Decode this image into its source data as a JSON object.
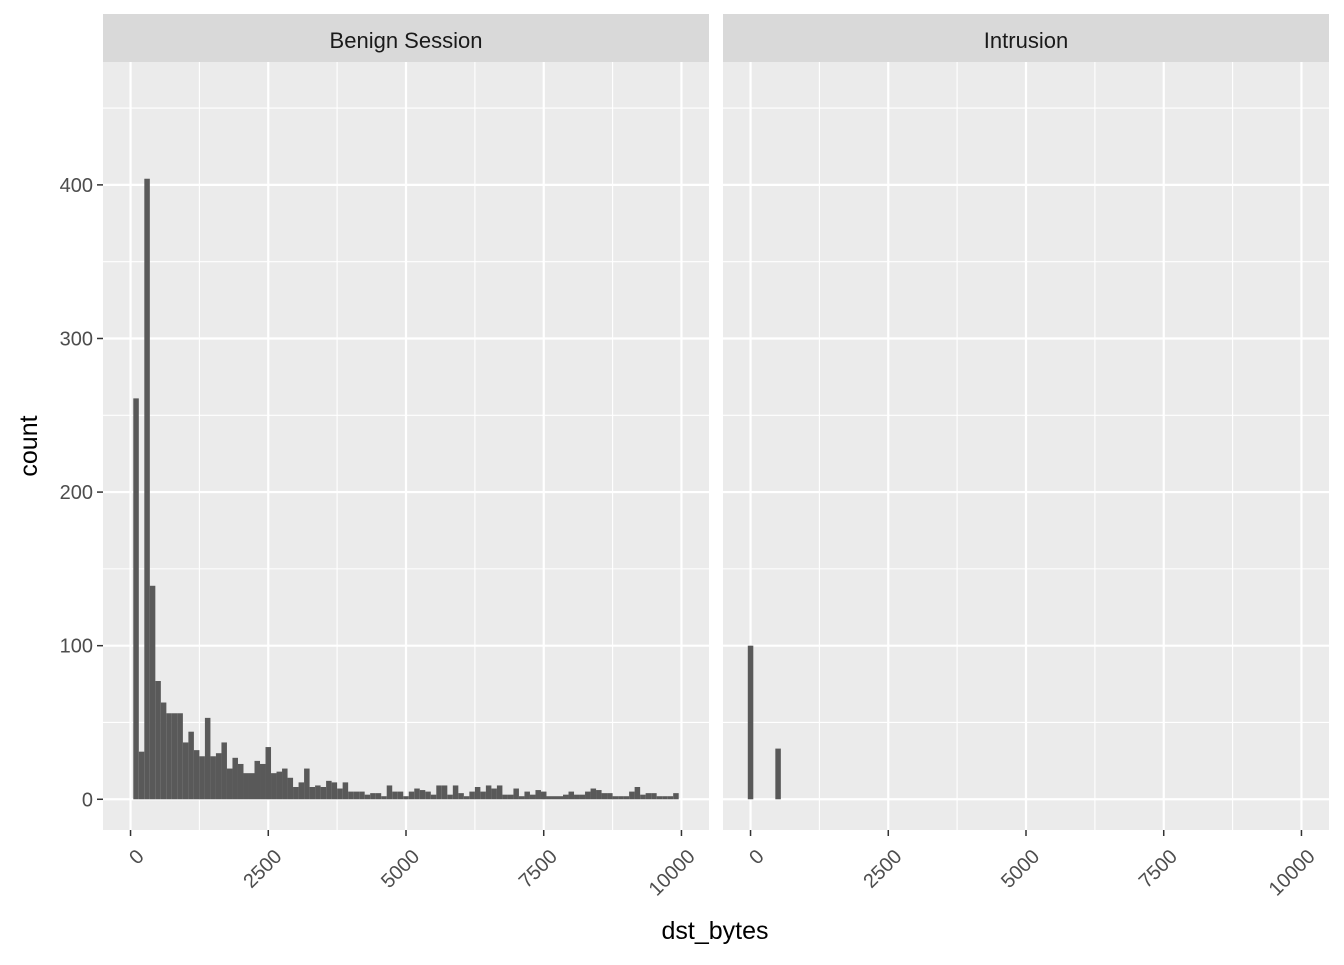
{
  "chart_data": {
    "type": "bar",
    "facet_style": "ggplot2 facet_wrap, grey panel background, white grid lines",
    "xlabel": "dst_bytes",
    "ylabel": "count",
    "xlim": [
      -500,
      10500
    ],
    "ylim": [
      -20,
      480
    ],
    "x_ticks": [
      0,
      2500,
      5000,
      7500,
      10000
    ],
    "x_tick_labels": [
      "0",
      "2500",
      "5000",
      "7500",
      "10000"
    ],
    "y_ticks": [
      0,
      100,
      200,
      300,
      400
    ],
    "y_tick_labels": [
      "0",
      "100",
      "200",
      "300",
      "400"
    ],
    "bin_width": 100,
    "bar_color": "#595959",
    "panel_background": "#ebebeb",
    "strip_background": "#d9d9d9",
    "grid": true,
    "panels": [
      {
        "strip_label": "Benign Session",
        "bins": [
          [
            100,
            261
          ],
          [
            200,
            31
          ],
          [
            300,
            404
          ],
          [
            400,
            139
          ],
          [
            500,
            77
          ],
          [
            600,
            63
          ],
          [
            700,
            56
          ],
          [
            800,
            56
          ],
          [
            900,
            56
          ],
          [
            1000,
            37
          ],
          [
            1100,
            44
          ],
          [
            1200,
            32
          ],
          [
            1300,
            28
          ],
          [
            1400,
            53
          ],
          [
            1500,
            28
          ],
          [
            1600,
            30
          ],
          [
            1700,
            37
          ],
          [
            1800,
            20
          ],
          [
            1900,
            27
          ],
          [
            2000,
            23
          ],
          [
            2100,
            17
          ],
          [
            2200,
            17
          ],
          [
            2300,
            25
          ],
          [
            2400,
            23
          ],
          [
            2500,
            34
          ],
          [
            2600,
            17
          ],
          [
            2700,
            18
          ],
          [
            2800,
            20
          ],
          [
            2900,
            14
          ],
          [
            3000,
            8
          ],
          [
            3100,
            11
          ],
          [
            3200,
            20
          ],
          [
            3300,
            8
          ],
          [
            3400,
            9
          ],
          [
            3500,
            8
          ],
          [
            3600,
            12
          ],
          [
            3700,
            11
          ],
          [
            3800,
            7
          ],
          [
            3900,
            11
          ],
          [
            4000,
            5
          ],
          [
            4100,
            5
          ],
          [
            4200,
            5
          ],
          [
            4300,
            3
          ],
          [
            4400,
            4
          ],
          [
            4500,
            4
          ],
          [
            4600,
            2
          ],
          [
            4700,
            9
          ],
          [
            4800,
            5
          ],
          [
            4900,
            5
          ],
          [
            5000,
            2
          ],
          [
            5100,
            5
          ],
          [
            5200,
            7
          ],
          [
            5300,
            6
          ],
          [
            5400,
            5
          ],
          [
            5500,
            3
          ],
          [
            5600,
            9
          ],
          [
            5700,
            9
          ],
          [
            5800,
            3
          ],
          [
            5900,
            9
          ],
          [
            6000,
            4
          ],
          [
            6100,
            2
          ],
          [
            6200,
            5
          ],
          [
            6300,
            8
          ],
          [
            6400,
            5
          ],
          [
            6500,
            9
          ],
          [
            6600,
            7
          ],
          [
            6700,
            9
          ],
          [
            6800,
            3
          ],
          [
            6900,
            3
          ],
          [
            7000,
            7
          ],
          [
            7100,
            2
          ],
          [
            7200,
            5
          ],
          [
            7300,
            3
          ],
          [
            7400,
            6
          ],
          [
            7500,
            5
          ],
          [
            7600,
            2
          ],
          [
            7700,
            2
          ],
          [
            7800,
            2
          ],
          [
            7900,
            3
          ],
          [
            8000,
            5
          ],
          [
            8100,
            3
          ],
          [
            8200,
            3
          ],
          [
            8300,
            5
          ],
          [
            8400,
            7
          ],
          [
            8500,
            6
          ],
          [
            8600,
            4
          ],
          [
            8700,
            4
          ],
          [
            8800,
            2
          ],
          [
            8900,
            2
          ],
          [
            9000,
            2
          ],
          [
            9100,
            5
          ],
          [
            9200,
            8
          ],
          [
            9300,
            3
          ],
          [
            9400,
            4
          ],
          [
            9500,
            4
          ],
          [
            9600,
            2
          ],
          [
            9700,
            2
          ],
          [
            9800,
            2
          ],
          [
            9900,
            4
          ]
        ]
      },
      {
        "strip_label": "Intrusion",
        "bins": [
          [
            0,
            100
          ],
          [
            500,
            33
          ]
        ]
      }
    ]
  }
}
